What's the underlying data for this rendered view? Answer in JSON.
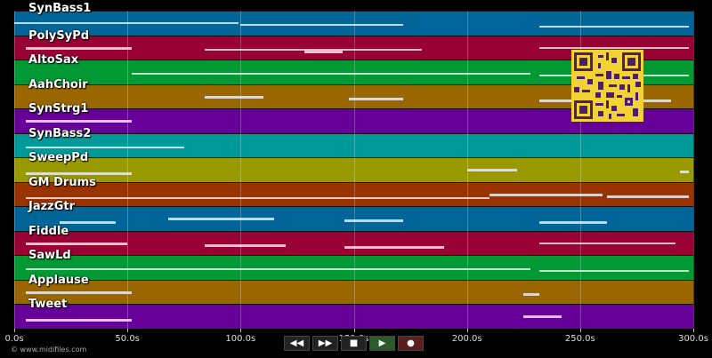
{
  "tracks": [
    {
      "name": "SynBass1",
      "color": "#006699"
    },
    {
      "name": "PolySyPd",
      "color": "#990033"
    },
    {
      "name": "AltoSax",
      "color": "#009933"
    },
    {
      "name": "AahChoir",
      "color": "#996600"
    },
    {
      "name": "SynStrg1",
      "color": "#660099"
    },
    {
      "name": "SynBass2",
      "color": "#009999"
    },
    {
      "name": "SweepPd",
      "color": "#999900"
    },
    {
      "name": "GM Drums",
      "color": "#993300"
    },
    {
      "name": "JazzGtr",
      "color": "#006699"
    },
    {
      "name": "Fiddle",
      "color": "#990033"
    },
    {
      "name": "SawLd",
      "color": "#009933"
    },
    {
      "name": "Applause",
      "color": "#996600"
    },
    {
      "name": "Tweet",
      "color": "#660099"
    }
  ],
  "timeline": {
    "max_seconds": 300,
    "ticks": [
      {
        "seconds": 0,
        "label": "0.0s"
      },
      {
        "seconds": 50,
        "label": "50.0s"
      },
      {
        "seconds": 100,
        "label": "100.0s"
      },
      {
        "seconds": 150,
        "label": "150.0s"
      },
      {
        "seconds": 200,
        "label": "200.0s"
      },
      {
        "seconds": 250,
        "label": "250.0s"
      },
      {
        "seconds": 300,
        "label": "300.0s"
      }
    ]
  },
  "notes": [
    {
      "track": 0,
      "start": 0,
      "end": 99
    },
    {
      "track": 0,
      "start": 100,
      "end": 172
    },
    {
      "track": 0,
      "start": 232,
      "end": 298
    },
    {
      "track": 1,
      "start": 5,
      "end": 52
    },
    {
      "track": 1,
      "start": 84,
      "end": 180
    },
    {
      "track": 1,
      "start": 128,
      "end": 145
    },
    {
      "track": 1,
      "start": 232,
      "end": 298
    },
    {
      "track": 2,
      "start": 52,
      "end": 228
    },
    {
      "track": 2,
      "start": 232,
      "end": 298
    },
    {
      "track": 3,
      "start": 84,
      "end": 110
    },
    {
      "track": 3,
      "start": 148,
      "end": 172
    },
    {
      "track": 3,
      "start": 232,
      "end": 290
    },
    {
      "track": 4,
      "start": 5,
      "end": 52
    },
    {
      "track": 5,
      "start": 5,
      "end": 75
    },
    {
      "track": 6,
      "start": 5,
      "end": 52
    },
    {
      "track": 6,
      "start": 200,
      "end": 222
    },
    {
      "track": 6,
      "start": 294,
      "end": 298
    },
    {
      "track": 7,
      "start": 5,
      "end": 210
    },
    {
      "track": 7,
      "start": 210,
      "end": 260
    },
    {
      "track": 7,
      "start": 262,
      "end": 298
    },
    {
      "track": 8,
      "start": 20,
      "end": 45
    },
    {
      "track": 8,
      "start": 68,
      "end": 115
    },
    {
      "track": 8,
      "start": 146,
      "end": 172
    },
    {
      "track": 8,
      "start": 232,
      "end": 262
    },
    {
      "track": 9,
      "start": 5,
      "end": 50
    },
    {
      "track": 9,
      "start": 84,
      "end": 120
    },
    {
      "track": 9,
      "start": 146,
      "end": 190
    },
    {
      "track": 9,
      "start": 232,
      "end": 292
    },
    {
      "track": 10,
      "start": 5,
      "end": 228
    },
    {
      "track": 10,
      "start": 232,
      "end": 298
    },
    {
      "track": 11,
      "start": 5,
      "end": 52
    },
    {
      "track": 11,
      "start": 225,
      "end": 232
    },
    {
      "track": 12,
      "start": 5,
      "end": 52
    },
    {
      "track": 12,
      "start": 225,
      "end": 242
    }
  ],
  "transport": {
    "rewind_label": "◀◀",
    "fast_forward_label": "▶▶",
    "stop_label": "■",
    "play_label": "▶",
    "record_label": "●"
  },
  "copyright": "© www.midifiles.com",
  "qr_icon": "qr-code-icon"
}
